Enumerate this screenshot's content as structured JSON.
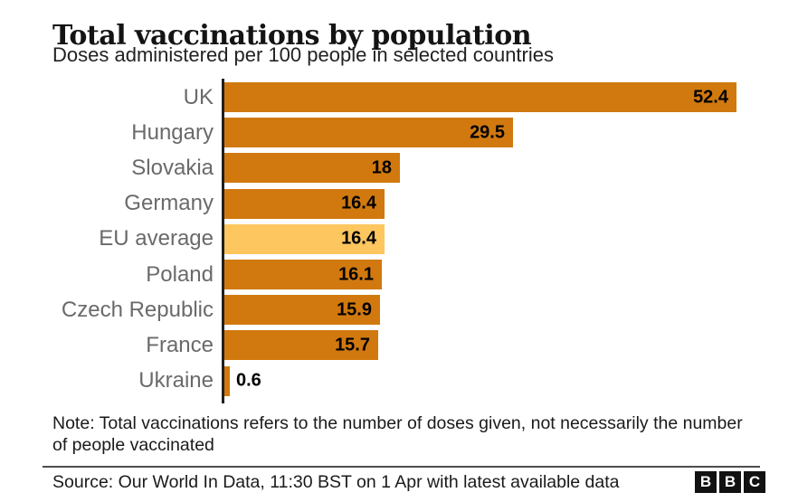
{
  "chart": {
    "title": "Total vaccinations by population",
    "subtitle": "Doses administered per 100 people in selected countries"
  },
  "chart_data": {
    "type": "bar",
    "orientation": "horizontal",
    "title": "Total vaccinations by population",
    "subtitle": "Doses administered per 100 people in selected countries",
    "categories": [
      "UK",
      "Hungary",
      "Slovakia",
      "Germany",
      "EU average",
      "Poland",
      "Czech Republic",
      "France",
      "Ukraine"
    ],
    "values": [
      52.4,
      29.5,
      18,
      16.4,
      16.4,
      16.1,
      15.9,
      15.7,
      0.6
    ],
    "value_labels": [
      "52.4",
      "29.5",
      "18",
      "16.4",
      "16.4",
      "16.1",
      "15.9",
      "15.7",
      "0.6"
    ],
    "highlight_index": 4,
    "xlim": [
      0,
      52.4
    ],
    "grid": false,
    "legend": false,
    "bar_color": "#d1790f",
    "highlight_color": "#fdc65e",
    "label_color": "#6a6a6a",
    "value_color": "#000000",
    "axis_color": "#202020"
  },
  "footer": {
    "note": "Note: Total vaccinations refers to the number of doses given, not necessarily the number of people vaccinated",
    "source": "Source: Our World In Data, 11:30 BST on 1 Apr with latest available data"
  },
  "logo": {
    "letters": [
      "B",
      "B",
      "C"
    ]
  }
}
